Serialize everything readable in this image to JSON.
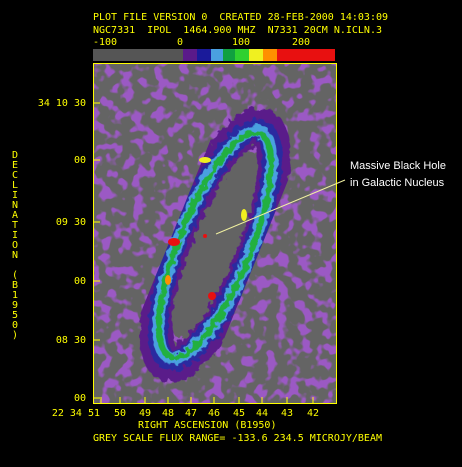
{
  "header": {
    "line1": "PLOT FILE VERSION 0  CREATED 28-FEB-2000 14:03:09",
    "line2": "NGC7331  IPOL  1464.900 MHZ  N7331 20CM N.ICLN.3"
  },
  "colorbar": {
    "labels": [
      "-100",
      "0",
      "100",
      "200"
    ]
  },
  "y_axis": {
    "title": "DECLINATION (B1950)",
    "ticks": [
      "34 10 30",
      "00",
      "09 30",
      "00",
      "08 30",
      "00"
    ]
  },
  "x_axis": {
    "title": "RIGHT ASCENSION (B1950)",
    "ticks": [
      "22 34 51",
      "50",
      "49",
      "48",
      "47",
      "46",
      "45",
      "44",
      "43",
      "42"
    ]
  },
  "footer": "GREY SCALE FLUX RANGE= -133.6 234.5 MICROJY/BEAM",
  "annotation": {
    "line1": "Massive Black Hole",
    "line2": "in Galactic Nucleus"
  }
}
